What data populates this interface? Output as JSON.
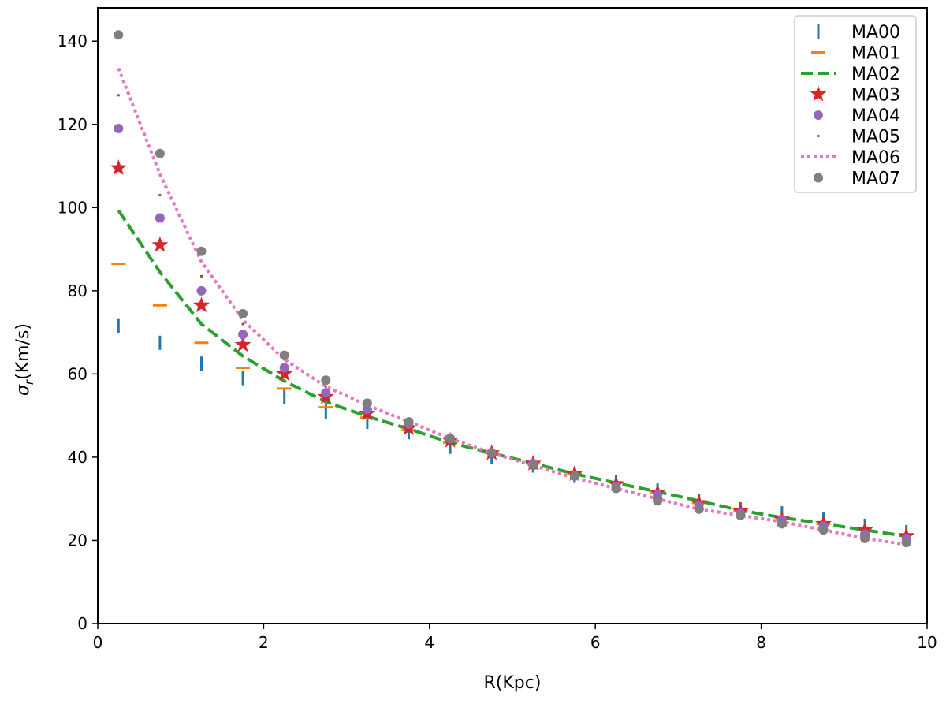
{
  "chart_data": {
    "type": "scatter",
    "xlabel": "R(Kpc)",
    "ylabel_symbol": "σ",
    "ylabel_sub": "r",
    "ylabel_unit": "(Km/s)",
    "xlim": [
      0,
      10
    ],
    "ylim": [
      0,
      148
    ],
    "xticks": [
      0,
      2,
      4,
      6,
      8,
      10
    ],
    "yticks": [
      0,
      20,
      40,
      60,
      80,
      100,
      120,
      140
    ],
    "grid": false,
    "legend_position": "top-right",
    "x": [
      0.25,
      0.75,
      1.25,
      1.75,
      2.25,
      2.75,
      3.25,
      3.75,
      4.25,
      4.75,
      5.25,
      5.75,
      6.25,
      6.75,
      7.25,
      7.75,
      8.25,
      8.75,
      9.25,
      9.75
    ],
    "series": [
      {
        "name": "MA00",
        "color": "#1f77b4",
        "style": "vline",
        "values": [
          71.5,
          67.5,
          62.5,
          59.0,
          54.5,
          51.0,
          48.5,
          46.0,
          42.5,
          40.0,
          38.0,
          35.5,
          34.0,
          32.0,
          29.5,
          27.5,
          26.5,
          25.0,
          23.5,
          22.0
        ]
      },
      {
        "name": "MA01",
        "color": "#ff7f0e",
        "style": "hline",
        "values": [
          86.5,
          76.5,
          67.5,
          61.5,
          56.5,
          52.0,
          49.5,
          46.5,
          43.5,
          41.0,
          38.5,
          36.0,
          34.0,
          31.5,
          29.0,
          27.0,
          25.5,
          24.0,
          23.0,
          21.5
        ]
      },
      {
        "name": "MA02",
        "color": "#2ca02c",
        "style": "dashed",
        "values": [
          99.3,
          84.5,
          72.0,
          64.3,
          58.3,
          53.3,
          49.8,
          46.8,
          43.5,
          41.0,
          38.5,
          36.0,
          33.8,
          31.7,
          29.5,
          27.2,
          25.5,
          24.0,
          22.5,
          21.0
        ]
      },
      {
        "name": "MA03",
        "color": "#d62728",
        "style": "star",
        "values": [
          109.5,
          91.0,
          76.5,
          67.0,
          60.0,
          54.5,
          50.5,
          47.0,
          44.0,
          41.0,
          38.5,
          36.0,
          33.5,
          31.5,
          29.0,
          27.0,
          25.0,
          24.0,
          22.5,
          21.0
        ]
      },
      {
        "name": "MA04",
        "color": "#9467bd",
        "style": "circle",
        "values": [
          119.0,
          97.5,
          80.0,
          69.5,
          61.5,
          55.5,
          51.5,
          48.0,
          44.5,
          41.0,
          38.5,
          35.5,
          33.0,
          31.0,
          28.5,
          26.5,
          25.0,
          23.5,
          21.5,
          20.5
        ]
      },
      {
        "name": "MA05",
        "color": "#8c564b",
        "style": "pixel",
        "values": [
          127.0,
          103.0,
          83.5,
          72.0,
          63.5,
          57.0,
          52.5,
          48.5,
          44.5,
          41.0,
          38.5,
          35.5,
          33.0,
          30.5,
          28.0,
          26.0,
          24.5,
          23.0,
          21.0,
          19.5
        ]
      },
      {
        "name": "MA06",
        "color": "#e377c2",
        "style": "dotted",
        "values": [
          133.5,
          108.0,
          87.0,
          73.0,
          63.5,
          57.0,
          52.5,
          48.5,
          44.5,
          41.0,
          38.0,
          35.0,
          32.5,
          30.0,
          27.5,
          26.0,
          24.5,
          22.5,
          20.5,
          19.0
        ]
      },
      {
        "name": "MA07",
        "color": "#7f7f7f",
        "style": "circle",
        "values": [
          141.5,
          113.0,
          89.5,
          74.5,
          64.5,
          58.5,
          53.0,
          48.5,
          44.5,
          41.0,
          38.0,
          35.5,
          32.5,
          29.5,
          27.5,
          26.0,
          24.0,
          22.5,
          20.5,
          19.5
        ]
      }
    ]
  }
}
